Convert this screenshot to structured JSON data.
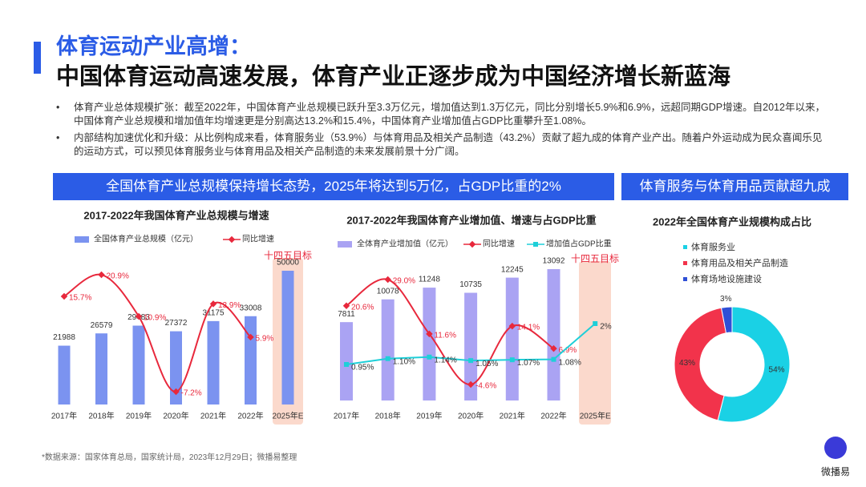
{
  "header": {
    "title": "体育运动产业高增：",
    "subtitle": "中国体育运动高速发展，体育产业正逐步成为中国经济增长新蓝海"
  },
  "bullets": [
    "体育产业总体规模扩张：截至2022年，中国体育产业总规模已跃升至3.3万亿元，增加值达到1.3万亿元，同比分别增长5.9%和6.9%，远超同期GDP增速。自2012年以来，中国体育产业总规模和增加值年均增速更是分别高达13.2%和15.4%，中国体育产业增加值占GDP比重攀升至1.08%。",
    "内部结构加速优化和升级：从比例构成来看，体育服务业（53.9%）与体育用品及相关产品制造（43.2%）贡献了超九成的体育产业产出。随着户外运动成为民众喜闻乐见的运动方式，可以预见体育服务业与体育用品及相关产品制造的未来发展前景十分广阔。"
  ],
  "banners": [
    "全国体育产业总规模保持增长态势，2025年将达到5万亿，占GDP比重的2%",
    "体育服务与体育用品贡献超九成"
  ],
  "source": "*数据来源：国家体育总局，国家统计局，2023年12月29日；微播易整理",
  "logo": "微播易",
  "chart_data": [
    {
      "type": "combo",
      "title": "2017-2022年我国体育产业总规模与增速",
      "annotation": "十四五目标",
      "categories": [
        "2017年",
        "2018年",
        "2019年",
        "2020年",
        "2021年",
        "2022年",
        "2025年E"
      ],
      "series": [
        {
          "name": "全国体育产业总规模（亿元）",
          "type": "bar",
          "color": "#7b93f0",
          "values": [
            21988,
            26579,
            29483,
            27372,
            31175,
            33008,
            50000
          ]
        },
        {
          "name": "同比增速",
          "type": "line",
          "color": "#e8283c",
          "values": [
            15.7,
            20.9,
            10.9,
            -7.2,
            13.9,
            5.9,
            null
          ],
          "value_labels": [
            "15.7%",
            "20.9%",
            "10.9%",
            "-7.2%",
            "13.9%",
            "5.9%",
            null
          ]
        }
      ]
    },
    {
      "type": "combo",
      "title": "2017-2022年我国体育产业增加值、增速与占GDP比重",
      "annotation": "十四五目标",
      "categories": [
        "2017年",
        "2018年",
        "2019年",
        "2020年",
        "2021年",
        "2022年",
        "2025年E"
      ],
      "series": [
        {
          "name": "全体育产业增加值（亿元）",
          "type": "bar",
          "color": "#aaa3f3",
          "values": [
            7811,
            10078,
            11248,
            10735,
            12245,
            13092,
            null
          ]
        },
        {
          "name": "同比增速",
          "type": "line",
          "color": "#e8283c",
          "values": [
            20.6,
            29.0,
            11.6,
            -4.6,
            14.1,
            6.9,
            null
          ],
          "value_labels": [
            "20.6%",
            "29.0%",
            "11.6%",
            "-4.6%",
            "14.1%",
            "6.9%",
            null
          ]
        },
        {
          "name": "增加值占GDP比重",
          "type": "line",
          "color": "#1ecfd8",
          "values": [
            0.95,
            1.1,
            1.14,
            1.05,
            1.07,
            1.08,
            2
          ],
          "value_labels": [
            "0.95%",
            "1.10%",
            "1.14%",
            "1.05%",
            "1.07%",
            "1.08%",
            "2%"
          ]
        }
      ]
    },
    {
      "type": "donut",
      "title": "2022年全国体育产业规模构成占比",
      "categories": [
        "体育服务业",
        "体育用品及相关产品制造",
        "体育场地设施建设"
      ],
      "values": [
        54,
        43,
        3
      ],
      "value_labels": [
        "54%",
        "43%",
        "3%"
      ],
      "colors": [
        "#1ad1e5",
        "#f2334b",
        "#2f4fd6"
      ]
    }
  ]
}
